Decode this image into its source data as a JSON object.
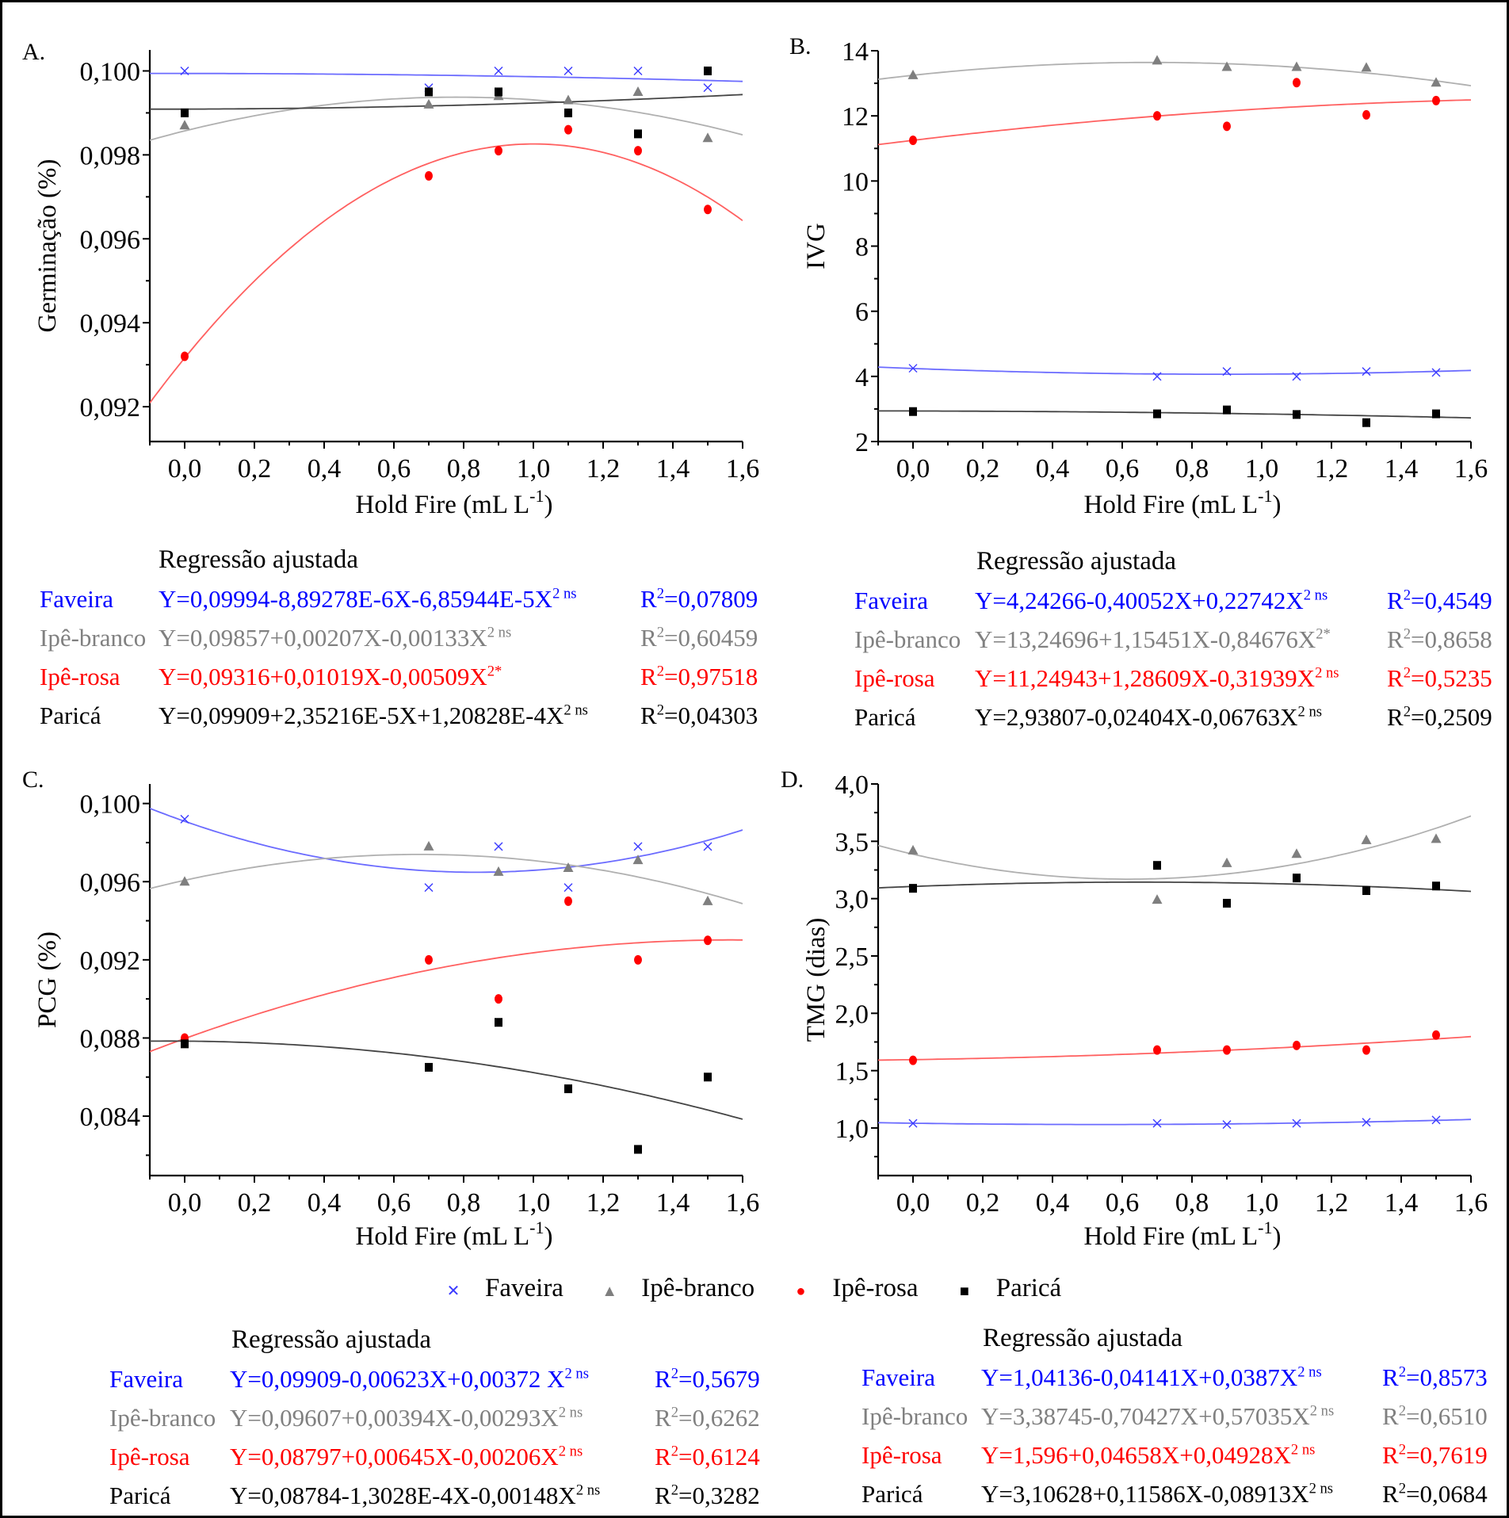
{
  "colors": {
    "Faveira": "#3a3aff",
    "Ipê-branco": "#7f7f7f",
    "Ipê-rosa": "#ff0000",
    "Paricá": "#000000",
    "Faveira_curve": "#6b6bff",
    "Ipê-branco_curve": "#b0b0b0",
    "Ipê-rosa_curve": "#ff6060",
    "Paricá_curve": "#444444",
    "eq_Faveira": "#0000ff",
    "eq_Ipê-branco": "#808080",
    "eq_Ipê-rosa": "#ff0000",
    "eq_Paricá": "#000000"
  },
  "legend": {
    "items": [
      {
        "name": "Faveira",
        "marker": "x"
      },
      {
        "name": "Ipê-branco",
        "marker": "triangle"
      },
      {
        "name": "Ipê-rosa",
        "marker": "circle"
      },
      {
        "name": "Paricá",
        "marker": "square"
      }
    ]
  },
  "chart_data": [
    {
      "panel": "A.",
      "type": "scatter",
      "xlabel": "Hold Fire (mL L-1)",
      "xlabel_main": "Hold Fire (mL L",
      "xlabel_sup": "-1",
      "xlabel_end": ")",
      "ylabel": "Germinação (%)",
      "xlim": [
        -0.1,
        1.6
      ],
      "ylim": [
        0.09117,
        0.1005
      ],
      "xticks": [
        0.0,
        0.2,
        0.4,
        0.6,
        0.8,
        1.0,
        1.2,
        1.4,
        1.6
      ],
      "xtick_labels": [
        "0,0",
        "0,2",
        "0,4",
        "0,6",
        "0,8",
        "1,0",
        "1,2",
        "1,4",
        "1,6"
      ],
      "yticks": [
        0.092,
        0.094,
        0.096,
        0.098,
        0.1
      ],
      "ytick_labels": [
        "0,092",
        "0,094",
        "0,096",
        "0,098",
        "0,100"
      ],
      "yminor": [
        0.091,
        0.093,
        0.095,
        0.097,
        0.099
      ],
      "x": [
        0.0,
        0.7,
        0.9,
        1.1,
        1.3,
        1.5
      ],
      "series": [
        {
          "name": "Faveira",
          "values": [
            0.1,
            0.0996,
            0.1,
            0.1,
            0.1,
            0.0996
          ],
          "coef": [
            0.09994,
            -8.89278e-06,
            -6.85944e-05
          ]
        },
        {
          "name": "Ipê-branco",
          "values": [
            0.0987,
            0.0992,
            0.0994,
            0.0993,
            0.0995,
            0.0984
          ],
          "coef": [
            0.09857,
            0.00207,
            -0.00133
          ]
        },
        {
          "name": "Ipê-rosa",
          "values": [
            0.0932,
            0.0975,
            0.0981,
            0.0986,
            0.0981,
            0.0967
          ],
          "coef": [
            0.09316,
            0.01019,
            -0.00509
          ]
        },
        {
          "name": "Paricá",
          "values": [
            0.099,
            0.0995,
            0.0995,
            0.099,
            0.0985,
            0.1
          ],
          "coef": [
            0.09909,
            2.35216e-05,
            0.000120828
          ]
        }
      ],
      "regression": {
        "title": "Regressão ajustada",
        "rows": [
          {
            "name": "Faveira",
            "eq": "Y=0,09994-8,89278E-6X-6,85944E-5X",
            "sup": "2 ns",
            "r2": "=0,07809"
          },
          {
            "name": "Ipê-branco",
            "eq": "Y=0,09857+0,00207X-0,00133X",
            "sup": "2 ns",
            "r2": "=0,60459"
          },
          {
            "name": "Ipê-rosa",
            "eq": "Y=0,09316+0,01019X-0,00509X",
            "sup": "2*",
            "r2": "=0,97518"
          },
          {
            "name": "Paricá",
            "eq": "Y=0,09909+2,35216E-5X+1,20828E-4X",
            "sup": "2 ns",
            "r2": "=0,04303"
          }
        ]
      }
    },
    {
      "panel": "B.",
      "type": "scatter",
      "xlabel": "Hold Fire (mL L-1)",
      "xlabel_main": "Hold Fire (mL L",
      "xlabel_sup": "-1",
      "xlabel_end": ")",
      "ylabel": "IVG",
      "xlim": [
        -0.1,
        1.6
      ],
      "ylim": [
        2,
        14
      ],
      "xticks": [
        0.0,
        0.2,
        0.4,
        0.6,
        0.8,
        1.0,
        1.2,
        1.4,
        1.6
      ],
      "xtick_labels": [
        "0,0",
        "0,2",
        "0,4",
        "0,6",
        "0,8",
        "1,0",
        "1,2",
        "1,4",
        "1,6"
      ],
      "yticks": [
        2,
        4,
        6,
        8,
        10,
        12,
        14
      ],
      "ytick_labels": [
        "2",
        "4",
        "6",
        "8",
        "10",
        "12",
        "14"
      ],
      "yminor": [
        3,
        5,
        7,
        9,
        11,
        13
      ],
      "x": [
        0.0,
        0.7,
        0.9,
        1.1,
        1.3,
        1.5
      ],
      "series": [
        {
          "name": "Faveira",
          "values": [
            4.25,
            4.0,
            4.15,
            4.0,
            4.15,
            4.12
          ],
          "coef": [
            4.24266,
            -0.40052,
            0.22742
          ]
        },
        {
          "name": "Ipê-branco",
          "values": [
            13.25,
            13.7,
            13.5,
            13.5,
            13.48,
            13.02
          ],
          "coef": [
            13.24696,
            1.15451,
            -0.84676
          ]
        },
        {
          "name": "Ipê-rosa",
          "values": [
            11.25,
            12.0,
            11.68,
            13.02,
            12.03,
            12.47
          ],
          "coef": [
            11.24943,
            1.28609,
            -0.31939
          ]
        },
        {
          "name": "Paricá",
          "values": [
            2.92,
            2.85,
            2.97,
            2.83,
            2.58,
            2.85
          ],
          "coef": [
            2.93807,
            -0.02404,
            -0.06763
          ]
        }
      ],
      "regression": {
        "title": "Regressão ajustada",
        "rows": [
          {
            "name": "Faveira",
            "eq": "Y=4,24266-0,40052X+0,22742X",
            "sup": "2 ns",
            "r2": "=0,4549"
          },
          {
            "name": "Ipê-branco",
            "eq": "Y=13,24696+1,15451X-0,84676X",
            "sup": "2*",
            "r2": "=0,8658"
          },
          {
            "name": "Ipê-rosa",
            "eq": "Y=11,24943+1,28609X-0,31939X",
            "sup": "2 ns",
            "r2": "=0,5235"
          },
          {
            "name": "Paricá",
            "eq": "Y=2,93807-0,02404X-0,06763X",
            "sup": "2 ns",
            "r2": "=0,2509"
          }
        ]
      }
    },
    {
      "panel": "C.",
      "type": "scatter",
      "xlabel": "Hold Fire (mL L-1)",
      "xlabel_main": "Hold Fire (mL L",
      "xlabel_sup": "-1",
      "xlabel_end": ")",
      "ylabel": "PCG (%)",
      "xlim": [
        -0.1,
        1.6
      ],
      "ylim": [
        0.08096,
        0.101
      ],
      "xticks": [
        0.0,
        0.2,
        0.4,
        0.6,
        0.8,
        1.0,
        1.2,
        1.4,
        1.6
      ],
      "xtick_labels": [
        "0,0",
        "0,2",
        "0,4",
        "0,6",
        "0,8",
        "1,0",
        "1,2",
        "1,4",
        "1,6"
      ],
      "yticks": [
        0.084,
        0.088,
        0.092,
        0.096,
        0.1
      ],
      "ytick_labels": [
        "0,084",
        "0,088",
        "0,092",
        "0,096",
        "0,100"
      ],
      "yminor": [
        0.082,
        0.086,
        0.09,
        0.094,
        0.098
      ],
      "x": [
        0.0,
        0.7,
        0.9,
        1.1,
        1.3,
        1.5
      ],
      "series": [
        {
          "name": "Faveira",
          "values": [
            0.0992,
            0.0957,
            0.0978,
            0.0957,
            0.0978,
            0.0978
          ],
          "coef": [
            0.09909,
            -0.00623,
            0.00372
          ]
        },
        {
          "name": "Ipê-branco",
          "values": [
            0.096,
            0.0978,
            0.0965,
            0.0967,
            0.0971,
            0.095
          ],
          "coef": [
            0.09607,
            0.00394,
            -0.00293
          ]
        },
        {
          "name": "Ipê-rosa",
          "values": [
            0.088,
            0.092,
            0.09,
            0.095,
            0.092,
            0.093
          ],
          "coef": [
            0.08797,
            0.00645,
            -0.00206
          ]
        },
        {
          "name": "Paricá",
          "values": [
            0.0877,
            0.0865,
            0.0888,
            0.0854,
            0.0823,
            0.086
          ],
          "coef": [
            0.08784,
            -0.00013028,
            -0.00148
          ]
        }
      ],
      "regression": {
        "title": "Regressão ajustada",
        "rows": [
          {
            "name": "Faveira",
            "eq": "Y=0,09909-0,00623X+0,00372 X",
            "sup": "2 ns",
            "r2": "=0,5679"
          },
          {
            "name": "Ipê-branco",
            "eq": "Y=0,09607+0,00394X-0,00293X",
            "sup": "2 ns",
            "r2": "=0,6262"
          },
          {
            "name": "Ipê-rosa",
            "eq": "Y=0,08797+0,00645X-0,00206X",
            "sup": "2 ns",
            "r2": "=0,6124"
          },
          {
            "name": "Paricá",
            "eq": "Y=0,08784-1,3028E-4X-0,00148X",
            "sup": "2 ns",
            "r2": "=0,3282"
          }
        ]
      }
    },
    {
      "panel": "D.",
      "type": "scatter",
      "xlabel": "Hold Fire (mL L-1)",
      "xlabel_main": "Hold Fire (mL L",
      "xlabel_sup": "-1",
      "xlabel_end": ")",
      "ylabel": "TMG (dias)",
      "xlim": [
        -0.1,
        1.6
      ],
      "ylim": [
        0.585,
        4.0
      ],
      "xticks": [
        0.0,
        0.2,
        0.4,
        0.6,
        0.8,
        1.0,
        1.2,
        1.4,
        1.6
      ],
      "xtick_labels": [
        "0,0",
        "0,2",
        "0,4",
        "0,6",
        "0,8",
        "1,0",
        "1,2",
        "1,4",
        "1,6"
      ],
      "yticks": [
        1.0,
        1.5,
        2.0,
        2.5,
        3.0,
        3.5,
        4.0
      ],
      "ytick_labels": [
        "1,0",
        "1,5",
        "2,0",
        "2,5",
        "3,0",
        "3,5",
        "4,0"
      ],
      "yminor": [
        0.75,
        1.25,
        1.75,
        2.25,
        2.75,
        3.25,
        3.75
      ],
      "x": [
        0.0,
        0.7,
        0.9,
        1.1,
        1.3,
        1.5
      ],
      "series": [
        {
          "name": "Faveira",
          "values": [
            1.04,
            1.04,
            1.03,
            1.04,
            1.05,
            1.07
          ],
          "coef": [
            1.04136,
            -0.04141,
            0.0387
          ]
        },
        {
          "name": "Ipê-branco",
          "values": [
            3.42,
            2.99,
            3.31,
            3.39,
            3.51,
            3.52
          ],
          "coef": [
            3.38745,
            -0.70427,
            0.57035
          ]
        },
        {
          "name": "Ipê-rosa",
          "values": [
            1.59,
            1.68,
            1.68,
            1.72,
            1.68,
            1.81
          ],
          "coef": [
            1.596,
            0.04658,
            0.04928
          ]
        },
        {
          "name": "Paricá",
          "values": [
            3.09,
            3.29,
            2.96,
            3.18,
            3.07,
            3.11
          ],
          "coef": [
            3.10628,
            0.11586,
            -0.08913
          ]
        }
      ],
      "regression": {
        "title": "Regressão ajustada",
        "rows": [
          {
            "name": "Faveira",
            "eq": "Y=1,04136-0,04141X+0,0387X",
            "sup": "2 ns",
            "r2": "=0,8573"
          },
          {
            "name": "Ipê-branco",
            "eq": "Y=3,38745-0,70427X+0,57035X",
            "sup": "2 ns",
            "r2": "=0,6510"
          },
          {
            "name": "Ipê-rosa",
            "eq": "Y=1,596+0,04658X+0,04928X",
            "sup": "2 ns",
            "r2": "=0,7619"
          },
          {
            "name": "Paricá",
            "eq": "Y=3,10628+0,11586X-0,08913X",
            "sup": "2 ns",
            "r2": "=0,0684"
          }
        ]
      }
    }
  ]
}
